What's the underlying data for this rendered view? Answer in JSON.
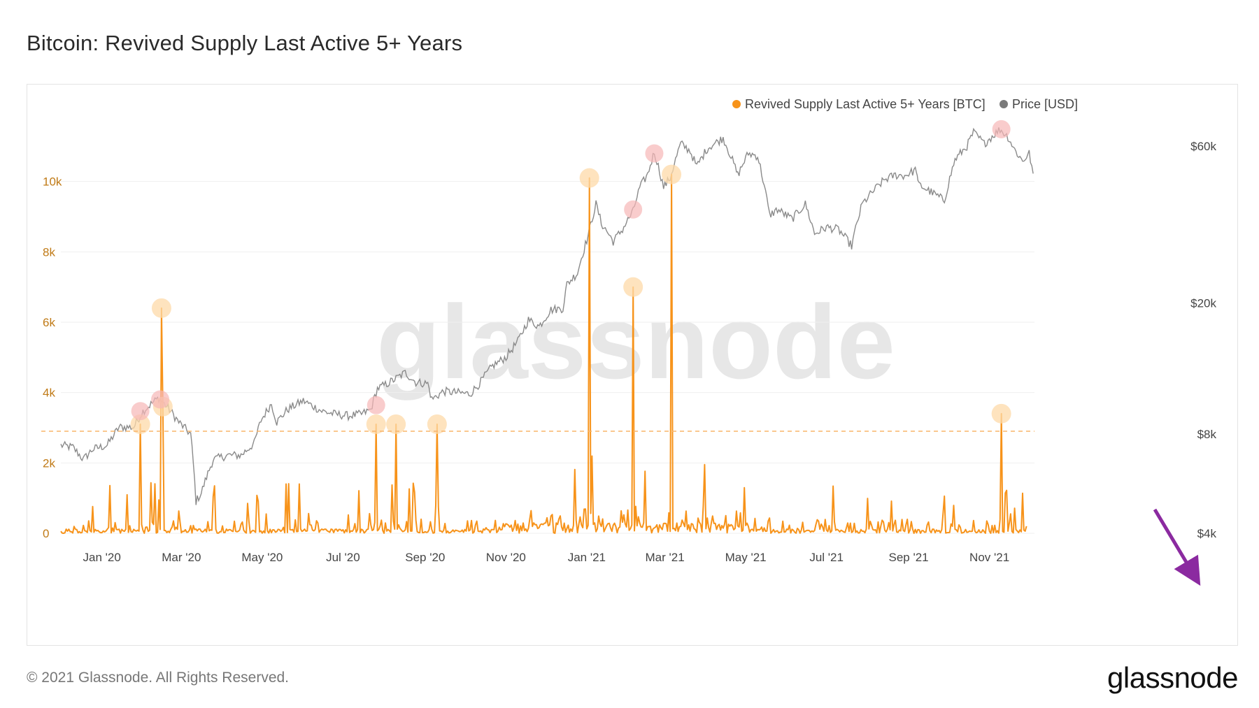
{
  "title": "Bitcoin: Revived Supply Last Active 5+ Years",
  "footer": {
    "copyright": "© 2021 Glassnode. All Rights Reserved.",
    "logo": "glassnode"
  },
  "watermark": "glassnode",
  "colors": {
    "supply": "#f7931a",
    "price": "#8a8a8a",
    "threshold": "#f9b56a",
    "highlight_supply": "#fdd9a8",
    "highlight_price": "#f7b7b7",
    "arrow": "#8b2aa0"
  },
  "chart_data": {
    "type": "line",
    "legend": [
      {
        "name": "Revived Supply Last Active 5+ Years [BTC]",
        "color": "#f7931a"
      },
      {
        "name": "Price [USD]",
        "color": "#7a7a7a"
      }
    ],
    "legend_position": "top-right",
    "grid": true,
    "x_ticks": [
      "Jan '20",
      "Mar '20",
      "May '20",
      "Jul '20",
      "Sep '20",
      "Nov '20",
      "Jan '21",
      "Mar '21",
      "May '21",
      "Jul '21",
      "Sep '21",
      "Nov '21"
    ],
    "x_range": [
      "2019-12-01",
      "2021-12-05"
    ],
    "left_axis": {
      "ticks": [
        "0",
        "2k",
        "4k",
        "6k",
        "8k",
        "10k"
      ],
      "values": [
        0,
        2000,
        4000,
        6000,
        8000,
        10000
      ],
      "ylim": [
        0,
        12000
      ]
    },
    "right_axis": {
      "scale": "log",
      "ticks": [
        "$4k",
        "$8k",
        "$20k",
        "$60k"
      ],
      "values": [
        4000,
        8000,
        20000,
        60000
      ]
    },
    "threshold_line": 2900,
    "series": [
      {
        "name": "Revived Supply Last Active 5+ Years [BTC]",
        "axis": "left",
        "peaks": [
          {
            "date": "2020-01-30",
            "value": 3100
          },
          {
            "date": "2020-02-15",
            "value": 6400
          },
          {
            "date": "2020-02-16",
            "value": 3600
          },
          {
            "date": "2020-07-26",
            "value": 3100
          },
          {
            "date": "2020-08-10",
            "value": 3100
          },
          {
            "date": "2020-09-10",
            "value": 3100
          },
          {
            "date": "2021-01-03",
            "value": 10100
          },
          {
            "date": "2021-02-05",
            "value": 7000
          },
          {
            "date": "2021-03-06",
            "value": 10200
          },
          {
            "date": "2021-11-10",
            "value": 3400
          }
        ]
      },
      {
        "name": "Price [USD]",
        "axis": "right",
        "points": [
          [
            "2019-12-01",
            7400
          ],
          [
            "2019-12-10",
            7300
          ],
          [
            "2019-12-18",
            6700
          ],
          [
            "2019-12-25",
            7200
          ],
          [
            "2020-01-05",
            7400
          ],
          [
            "2020-01-14",
            8400
          ],
          [
            "2020-01-25",
            8400
          ],
          [
            "2020-02-01",
            9400
          ],
          [
            "2020-02-10",
            10100
          ],
          [
            "2020-02-13",
            10300
          ],
          [
            "2020-02-20",
            9600
          ],
          [
            "2020-02-28",
            8700
          ],
          [
            "2020-03-08",
            8000
          ],
          [
            "2020-03-12",
            5000
          ],
          [
            "2020-03-16",
            5300
          ],
          [
            "2020-03-25",
            6700
          ],
          [
            "2020-04-05",
            6900
          ],
          [
            "2020-04-15",
            6900
          ],
          [
            "2020-04-25",
            7500
          ],
          [
            "2020-04-30",
            8800
          ],
          [
            "2020-05-08",
            9900
          ],
          [
            "2020-05-12",
            8700
          ],
          [
            "2020-05-20",
            9500
          ],
          [
            "2020-06-01",
            10100
          ],
          [
            "2020-06-15",
            9400
          ],
          [
            "2020-06-25",
            9200
          ],
          [
            "2020-07-05",
            9100
          ],
          [
            "2020-07-15",
            9200
          ],
          [
            "2020-07-22",
            9500
          ],
          [
            "2020-07-27",
            11000
          ],
          [
            "2020-08-02",
            11300
          ],
          [
            "2020-08-10",
            11800
          ],
          [
            "2020-08-17",
            12300
          ],
          [
            "2020-08-25",
            11500
          ],
          [
            "2020-09-03",
            11400
          ],
          [
            "2020-09-06",
            10200
          ],
          [
            "2020-09-15",
            10800
          ],
          [
            "2020-09-25",
            10700
          ],
          [
            "2020-10-05",
            10600
          ],
          [
            "2020-10-12",
            11400
          ],
          [
            "2020-10-22",
            12900
          ],
          [
            "2020-11-01",
            13700
          ],
          [
            "2020-11-10",
            15300
          ],
          [
            "2020-11-18",
            17800
          ],
          [
            "2020-11-26",
            17000
          ],
          [
            "2020-12-05",
            19100
          ],
          [
            "2020-12-14",
            19300
          ],
          [
            "2020-12-17",
            22800
          ],
          [
            "2020-12-25",
            24700
          ],
          [
            "2021-01-02",
            32000
          ],
          [
            "2021-01-08",
            40000
          ],
          [
            "2021-01-12",
            35000
          ],
          [
            "2021-01-21",
            30800
          ],
          [
            "2021-01-28",
            33500
          ],
          [
            "2021-02-05",
            38000
          ],
          [
            "2021-02-10",
            44800
          ],
          [
            "2021-02-16",
            49200
          ],
          [
            "2021-02-21",
            57500
          ],
          [
            "2021-02-28",
            45000
          ],
          [
            "2021-03-05",
            48000
          ],
          [
            "2021-03-13",
            61000
          ],
          [
            "2021-03-20",
            58000
          ],
          [
            "2021-03-25",
            52000
          ],
          [
            "2021-04-02",
            59000
          ],
          [
            "2021-04-14",
            63500
          ],
          [
            "2021-04-25",
            49000
          ],
          [
            "2021-05-03",
            57000
          ],
          [
            "2021-05-10",
            56000
          ],
          [
            "2021-05-19",
            37000
          ],
          [
            "2021-05-25",
            38500
          ],
          [
            "2021-06-05",
            36000
          ],
          [
            "2021-06-15",
            40000
          ],
          [
            "2021-06-22",
            32500
          ],
          [
            "2021-07-01",
            34000
          ],
          [
            "2021-07-10",
            33500
          ],
          [
            "2021-07-20",
            29800
          ],
          [
            "2021-07-28",
            40000
          ],
          [
            "2021-08-07",
            44500
          ],
          [
            "2021-08-14",
            47500
          ],
          [
            "2021-08-22",
            49000
          ],
          [
            "2021-08-29",
            48800
          ],
          [
            "2021-09-07",
            50900
          ],
          [
            "2021-09-08",
            46000
          ],
          [
            "2021-09-20",
            43000
          ],
          [
            "2021-09-28",
            41000
          ],
          [
            "2021-10-06",
            54500
          ],
          [
            "2021-10-15",
            60000
          ],
          [
            "2021-10-20",
            66000
          ],
          [
            "2021-10-28",
            61000
          ],
          [
            "2021-11-09",
            67500
          ],
          [
            "2021-11-15",
            64000
          ],
          [
            "2021-11-20",
            58500
          ],
          [
            "2021-11-26",
            54000
          ],
          [
            "2021-12-01",
            57000
          ],
          [
            "2021-12-04",
            49500
          ]
        ]
      }
    ]
  }
}
